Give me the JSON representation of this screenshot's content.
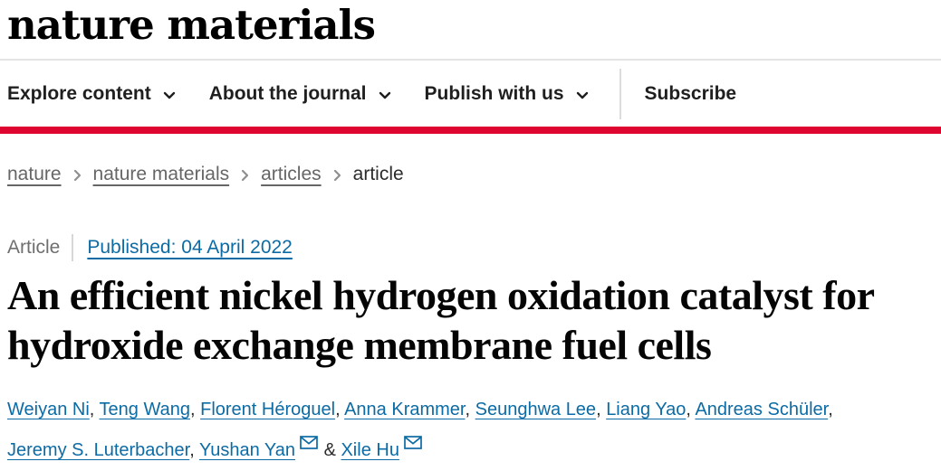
{
  "brand": {
    "logo_text": "nature materials"
  },
  "colors": {
    "brand_red": "#de0530",
    "link_blue": "#0c6ba5",
    "nav_text": "#1f1f1f",
    "muted_gray": "#666666"
  },
  "nav": {
    "items": [
      {
        "label": "Explore content",
        "has_dropdown": true
      },
      {
        "label": "About the journal",
        "has_dropdown": true
      },
      {
        "label": "Publish with us",
        "has_dropdown": true
      }
    ],
    "subscribe_label": "Subscribe"
  },
  "breadcrumb": {
    "items": [
      {
        "label": "nature",
        "is_link": true
      },
      {
        "label": "nature materials",
        "is_link": true
      },
      {
        "label": "articles",
        "is_link": true
      },
      {
        "label": "article",
        "is_link": false
      }
    ]
  },
  "article_meta": {
    "type_label": "Article",
    "published_label": "Published: 04 April 2022"
  },
  "title": "An efficient nickel hydrogen oxidation catalyst for hydroxide exchange membrane fuel cells",
  "authors": {
    "list": [
      {
        "name": "Weiyan Ni",
        "email_icon": false,
        "sep": ", "
      },
      {
        "name": "Teng Wang",
        "email_icon": false,
        "sep": ", "
      },
      {
        "name": "Florent Héroguel",
        "email_icon": false,
        "sep": ", "
      },
      {
        "name": "Anna Krammer",
        "email_icon": false,
        "sep": ", "
      },
      {
        "name": "Seunghwa Lee",
        "email_icon": false,
        "sep": ", "
      },
      {
        "name": "Liang Yao",
        "email_icon": false,
        "sep": ", "
      },
      {
        "name": "Andreas Schüler",
        "email_icon": false,
        "sep": ", "
      },
      {
        "name": "Jeremy S. Luterbacher",
        "email_icon": false,
        "sep": ", "
      },
      {
        "name": "Yushan Yan",
        "email_icon": true,
        "sep": " & "
      },
      {
        "name": "Xile Hu",
        "email_icon": true,
        "sep": ""
      }
    ]
  }
}
